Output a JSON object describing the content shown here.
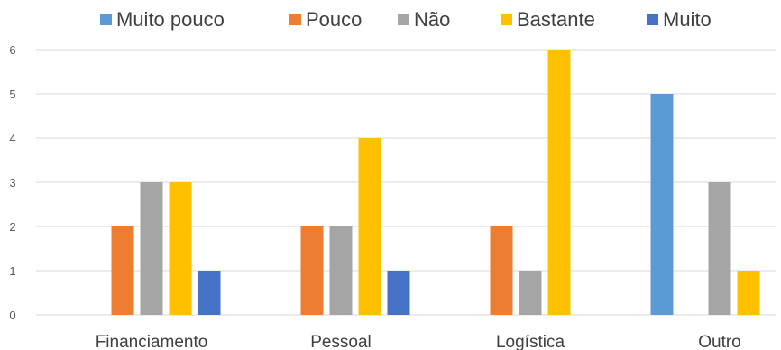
{
  "chart_data": {
    "type": "bar",
    "categories": [
      "Financiamento",
      "Pessoal",
      "Logística",
      "Outro"
    ],
    "series": [
      {
        "name": "Muito pouco",
        "color": "#5b9bd5",
        "values": [
          0,
          0,
          0,
          5
        ]
      },
      {
        "name": "Pouco",
        "color": "#ed7d31",
        "values": [
          2,
          2,
          2,
          0
        ]
      },
      {
        "name": "Não",
        "color": "#a5a5a5",
        "values": [
          3,
          2,
          1,
          3
        ]
      },
      {
        "name": "Bastante",
        "color": "#ffc000",
        "values": [
          3,
          4,
          6,
          1
        ]
      },
      {
        "name": "Muito",
        "color": "#4472c4",
        "values": [
          1,
          1,
          0,
          0
        ]
      }
    ],
    "yticks": [
      "0",
      "1",
      "2",
      "3",
      "4",
      "5",
      "6"
    ],
    "ylim": [
      0,
      6
    ],
    "grid": true,
    "legend_position": "top"
  }
}
